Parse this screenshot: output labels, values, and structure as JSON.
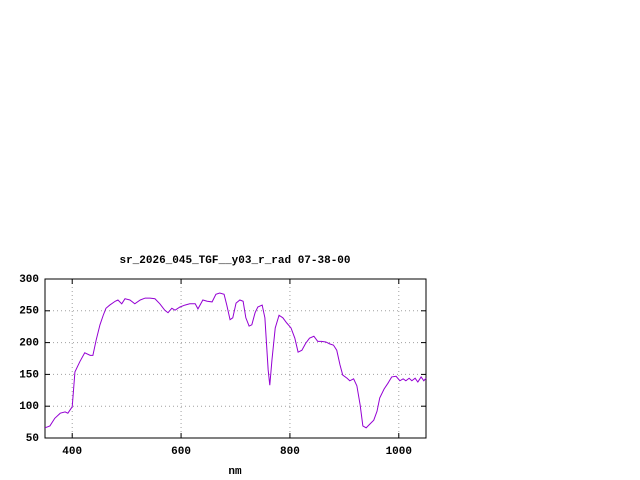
{
  "chart_data": {
    "type": "line",
    "title": "sr_2026_045_TGF__y03_r_rad 07-38-00",
    "xlabel": "nm",
    "x": [
      350,
      359,
      368,
      378,
      387,
      392,
      400,
      405,
      414,
      423,
      433,
      438,
      444,
      451,
      457,
      462,
      469,
      479,
      484,
      491,
      497,
      506,
      515,
      525,
      534,
      543,
      552,
      561,
      570,
      576,
      583,
      589,
      598,
      607,
      616,
      626,
      631,
      640,
      648,
      657,
      664,
      671,
      679,
      684,
      690,
      695,
      701,
      708,
      714,
      719,
      725,
      730,
      736,
      741,
      749,
      754,
      760,
      763,
      767,
      773,
      780,
      787,
      794,
      802,
      809,
      815,
      822,
      829,
      836,
      844,
      851,
      858,
      866,
      873,
      880,
      886,
      892,
      897,
      905,
      910,
      917,
      923,
      929,
      934,
      940,
      947,
      954,
      960,
      965,
      973,
      980,
      987,
      995,
      1002,
      1008,
      1013,
      1019,
      1024,
      1030,
      1035,
      1041,
      1046,
      1050
    ],
    "values": [
      66,
      69,
      81,
      89,
      91,
      89,
      99,
      154,
      170,
      184,
      180,
      180,
      204,
      228,
      243,
      254,
      259,
      265,
      267,
      261,
      269,
      267,
      261,
      267,
      270,
      270,
      269,
      261,
      251,
      247,
      254,
      251,
      256,
      259,
      261,
      261,
      253,
      267,
      265,
      264,
      276,
      278,
      276,
      259,
      236,
      239,
      262,
      267,
      265,
      239,
      226,
      228,
      247,
      256,
      259,
      239,
      157,
      133,
      173,
      223,
      243,
      239,
      231,
      223,
      207,
      185,
      188,
      199,
      207,
      210,
      202,
      202,
      201,
      198,
      196,
      188,
      165,
      149,
      144,
      140,
      143,
      132,
      102,
      69,
      66,
      72,
      78,
      92,
      113,
      127,
      136,
      146,
      147,
      140,
      143,
      140,
      144,
      140,
      144,
      138,
      146,
      140,
      144
    ],
    "color": "#9400d3",
    "xlim": [
      350,
      1050
    ],
    "ylim": [
      50,
      300
    ],
    "xticks": [
      400,
      600,
      800,
      1000
    ],
    "yticks": [
      50,
      100,
      150,
      200,
      250,
      300
    ],
    "grid": true
  }
}
